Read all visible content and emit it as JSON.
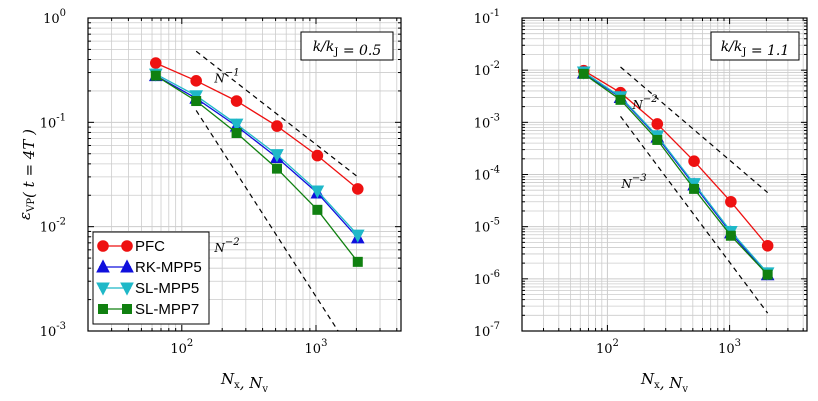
{
  "chart_data": [
    {
      "type": "line",
      "xscale": "log",
      "yscale": "log",
      "xlim": [
        20,
        4300
      ],
      "ylim": [
        0.001,
        1
      ],
      "xlabel": "N_x, N_v",
      "ylabel": "ε_VP(t = 4T)",
      "box_label": "k/k_J = 0.5",
      "x_ticks": [
        {
          "value": 100,
          "label": "10",
          "exp": "2"
        },
        {
          "value": 1000,
          "label": "10",
          "exp": "3"
        }
      ],
      "y_ticks": [
        {
          "value": 1,
          "label": "10",
          "exp": "0"
        },
        {
          "value": 0.1,
          "label": "10",
          "exp": "-1"
        },
        {
          "value": 0.01,
          "label": "10",
          "exp": "-2"
        },
        {
          "value": 0.001,
          "label": "10",
          "exp": "-3"
        }
      ],
      "series": [
        {
          "name": "PFC",
          "color": "#ee1111",
          "marker": "circle",
          "x": [
            64,
            128,
            256,
            512,
            1024,
            2048
          ],
          "y": [
            0.37,
            0.25,
            0.16,
            0.092,
            0.048,
            0.023
          ]
        },
        {
          "name": "RK-MPP5",
          "color": "#1010dd",
          "marker": "triangle-up",
          "x": [
            64,
            128,
            256,
            512,
            1024,
            2048
          ],
          "y": [
            0.28,
            0.17,
            0.092,
            0.046,
            0.021,
            0.0078
          ]
        },
        {
          "name": "SL-MPP5",
          "color": "#1fb8c8",
          "marker": "triangle-down",
          "x": [
            64,
            128,
            256,
            512,
            1024,
            2048
          ],
          "y": [
            0.29,
            0.18,
            0.096,
            0.049,
            0.022,
            0.0083
          ]
        },
        {
          "name": "SL-MPP7",
          "color": "#108010",
          "marker": "square",
          "x": [
            64,
            128,
            256,
            512,
            1024,
            2048
          ],
          "y": [
            0.28,
            0.16,
            0.079,
            0.036,
            0.0145,
            0.0046
          ]
        }
      ],
      "reference_lines": [
        {
          "label": "N",
          "exp": "−1",
          "x": [
            128,
            2048
          ],
          "y": [
            0.48,
            0.03
          ],
          "label_x": 175,
          "label_y": 0.24
        },
        {
          "label": "N",
          "exp": "−2",
          "x": [
            128,
            1500
          ],
          "y": [
            0.13,
            0.00095
          ],
          "label_x": 175,
          "label_y": 0.0057
        }
      ],
      "legend": "lower-left"
    },
    {
      "type": "line",
      "xscale": "log",
      "yscale": "log",
      "xlim": [
        20,
        4300
      ],
      "ylim": [
        1e-07,
        0.1
      ],
      "xlabel": "N_x, N_v",
      "box_label": "k/k_J = 1.1",
      "x_ticks": [
        {
          "value": 100,
          "label": "10",
          "exp": "2"
        },
        {
          "value": 1000,
          "label": "10",
          "exp": "3"
        }
      ],
      "y_ticks": [
        {
          "value": 0.1,
          "label": "10",
          "exp": "-1"
        },
        {
          "value": 0.01,
          "label": "10",
          "exp": "-2"
        },
        {
          "value": 0.001,
          "label": "10",
          "exp": "-3"
        },
        {
          "value": 0.0001,
          "label": "10",
          "exp": "-4"
        },
        {
          "value": 1e-05,
          "label": "10",
          "exp": "-5"
        },
        {
          "value": 1e-06,
          "label": "10",
          "exp": "-6"
        },
        {
          "value": 1e-07,
          "label": "10",
          "exp": "-7"
        }
      ],
      "series": [
        {
          "name": "PFC",
          "color": "#ee1111",
          "marker": "circle",
          "x": [
            64,
            128,
            256,
            512,
            1024,
            2048
          ],
          "y": [
            0.0098,
            0.0037,
            0.00093,
            0.00018,
            3e-05,
            4.3e-06
          ]
        },
        {
          "name": "RK-MPP5",
          "color": "#1010dd",
          "marker": "triangle-up",
          "x": [
            64,
            128,
            256,
            512,
            1024,
            2048
          ],
          "y": [
            0.0088,
            0.003,
            0.00052,
            6.3e-05,
            7.6e-06,
            1.2e-06
          ]
        },
        {
          "name": "SL-MPP5",
          "color": "#1fb8c8",
          "marker": "triangle-down",
          "x": [
            64,
            128,
            256,
            512,
            1024,
            2048
          ],
          "y": [
            0.0092,
            0.0031,
            0.00055,
            6.7e-05,
            8.1e-06,
            1.3e-06
          ]
        },
        {
          "name": "SL-MPP7",
          "color": "#108010",
          "marker": "square",
          "x": [
            64,
            128,
            256,
            512,
            1024,
            2048
          ],
          "y": [
            0.0085,
            0.0027,
            0.00046,
            5.3e-05,
            6.7e-06,
            1.2e-06
          ]
        }
      ],
      "reference_lines": [
        {
          "label": "N",
          "exp": "−2",
          "x": [
            128,
            2048
          ],
          "y": [
            0.0115,
            4.5e-05
          ],
          "label_x": 160,
          "label_y": 0.0018
        },
        {
          "label": "N",
          "exp": "−3",
          "x": [
            128,
            2048
          ],
          "y": [
            0.0013,
            2.2e-07
          ],
          "label_x": 130,
          "label_y": 5.5e-05
        }
      ]
    }
  ]
}
